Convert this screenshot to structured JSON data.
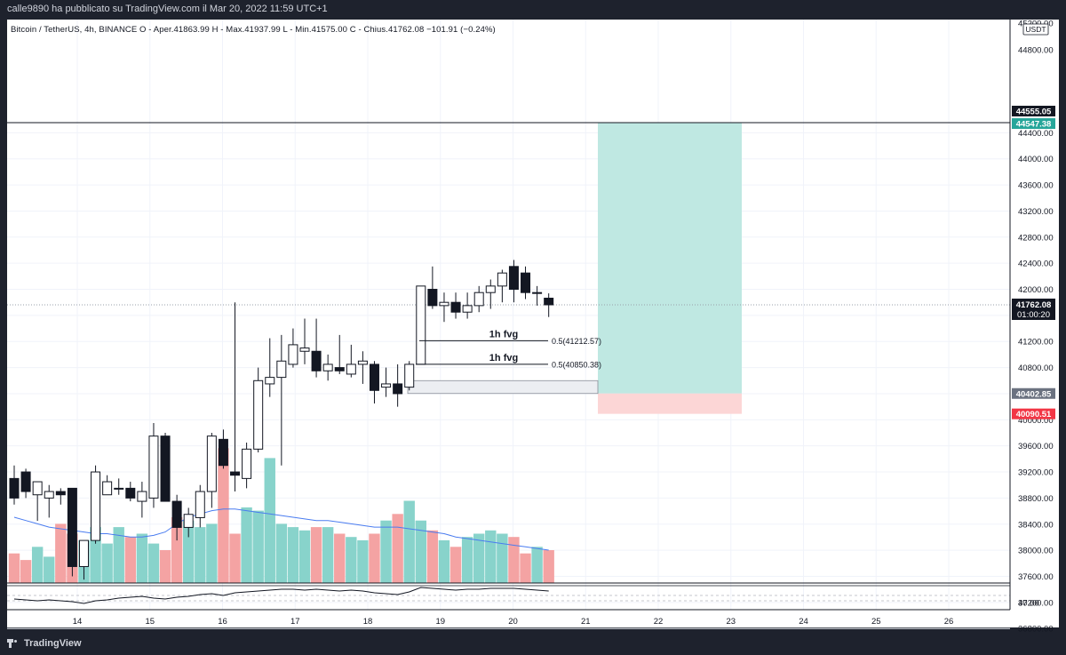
{
  "header": {
    "published": "calle9890 ha pubblicato su TradingView.com il Mar 20, 2022 11:59 UTC+1"
  },
  "legend": {
    "text": "Bitcoin / TetherUS, 4h, BINANCE  O - Aper.41863.99  H - Max.41937.99  L - Min.41575.00  C - Chius.41762.08  −101.91 (−0.24%)"
  },
  "footer": {
    "brand": "TradingView"
  },
  "price_axis": {
    "currency": "USDT",
    "top_partial": "45200.00",
    "partial2": "44800.00",
    "ticks": [
      "44400.00",
      "44000.00",
      "43600.00",
      "43200.00",
      "42800.00",
      "42400.00",
      "42000.00",
      "41600.00",
      "41200.00",
      "40800.00",
      "40400.00",
      "40000.00",
      "39600.00",
      "39200.00",
      "38800.00",
      "38400.00",
      "38000.00",
      "37600.00",
      "37200.00",
      "36800.00"
    ],
    "osc_tick": "40.00",
    "labels": {
      "target": "44555.05",
      "target2": "44547.38",
      "entry": "40402.85",
      "stop": "40090.51",
      "last": "41762.08",
      "countdown": "01:00:20"
    }
  },
  "time_axis": {
    "ticks": [
      "14",
      "15",
      "16",
      "17",
      "18",
      "19",
      "20",
      "21",
      "22",
      "23",
      "24",
      "25",
      "26"
    ]
  },
  "colors": {
    "up_volume": "#88d3cb",
    "down_volume": "#f4a3a3",
    "profit_zone": "#bfe8e2",
    "loss_zone": "#fcd6d6",
    "ma": "#4a7cf0"
  },
  "chart_data": {
    "type": "candlestick",
    "symbol": "Bitcoin / TetherUS",
    "interval": "4h",
    "exchange": "BINANCE",
    "ohlc_last": {
      "open": 41863.99,
      "high": 41937.99,
      "low": 41575.0,
      "close": 41762.08,
      "change": -101.91,
      "change_pct": -0.24
    },
    "day_ticks": [
      "14",
      "15",
      "16",
      "17",
      "18",
      "19",
      "20",
      "21",
      "22",
      "23",
      "24",
      "25",
      "26"
    ],
    "y_range": [
      36600,
      45300
    ],
    "candles": [
      [
        39100,
        39300,
        38700,
        38800
      ],
      [
        39200,
        39250,
        38800,
        38900
      ],
      [
        38850,
        39050,
        38450,
        39050
      ],
      [
        38800,
        39000,
        38500,
        38900
      ],
      [
        38900,
        38950,
        38700,
        38850
      ],
      [
        38950,
        38950,
        37600,
        37750
      ],
      [
        37750,
        38150,
        37550,
        38150
      ],
      [
        38150,
        39300,
        38100,
        39200
      ],
      [
        38850,
        39150,
        38850,
        39050
      ],
      [
        38950,
        39100,
        38850,
        38950
      ],
      [
        38950,
        39050,
        38750,
        38800
      ],
      [
        38750,
        39050,
        38500,
        38900
      ],
      [
        38800,
        39950,
        38650,
        39750
      ],
      [
        39750,
        39800,
        38750,
        38750
      ],
      [
        38750,
        38850,
        38150,
        38350
      ],
      [
        38350,
        38650,
        38200,
        38550
      ],
      [
        38500,
        39000,
        38350,
        38900
      ],
      [
        38900,
        39800,
        38650,
        39750
      ],
      [
        39700,
        39850,
        39250,
        39300
      ],
      [
        39200,
        41800,
        38900,
        39150
      ],
      [
        39100,
        39650,
        38950,
        39550
      ],
      [
        39550,
        40800,
        39500,
        40600
      ],
      [
        40550,
        41250,
        40350,
        40650
      ],
      [
        40650,
        41300,
        39300,
        40900
      ],
      [
        40850,
        41400,
        40800,
        41150
      ],
      [
        41050,
        41550,
        40850,
        41100
      ],
      [
        41050,
        41550,
        40650,
        40750
      ],
      [
        40750,
        41000,
        40600,
        40850
      ],
      [
        40800,
        41300,
        40700,
        40750
      ],
      [
        40700,
        41150,
        40650,
        40850
      ],
      [
        40850,
        41050,
        40550,
        40900
      ],
      [
        40850,
        40900,
        40250,
        40450
      ],
      [
        40500,
        40800,
        40350,
        40550
      ],
      [
        40550,
        40850,
        40200,
        40400
      ],
      [
        40500,
        40900,
        40450,
        40850
      ],
      [
        40850,
        42050,
        40850,
        42050
      ],
      [
        42000,
        42350,
        41700,
        41750
      ],
      [
        41750,
        41950,
        41500,
        41800
      ],
      [
        41800,
        41950,
        41550,
        41650
      ],
      [
        41650,
        41950,
        41550,
        41750
      ],
      [
        41750,
        42050,
        41650,
        41950
      ],
      [
        41950,
        42150,
        41700,
        42050
      ],
      [
        42050,
        42300,
        41800,
        42250
      ],
      [
        42350,
        42450,
        41800,
        42000
      ],
      [
        42250,
        42350,
        41850,
        41950
      ],
      [
        41950,
        42050,
        41750,
        41950
      ],
      [
        41863.99,
        41937.99,
        41575.0,
        41762.08
      ]
    ],
    "volume": [
      18,
      14,
      22,
      16,
      36,
      30,
      26,
      34,
      24,
      34,
      28,
      30,
      24,
      20,
      40,
      38,
      34,
      36,
      82,
      30,
      46,
      44,
      76,
      36,
      34,
      32,
      34,
      34,
      30,
      28,
      26,
      30,
      38,
      42,
      50,
      38,
      32,
      26,
      22,
      28,
      30,
      32,
      30,
      28,
      18,
      22,
      20
    ],
    "volume_ma": [
      40,
      38,
      36,
      34,
      33,
      32,
      31,
      30,
      30,
      29,
      28,
      28,
      29,
      31,
      36,
      40,
      42,
      44,
      45,
      45,
      44,
      43,
      42,
      41,
      40,
      39,
      38,
      38,
      37,
      36,
      35,
      34,
      34,
      34,
      33,
      32,
      31,
      30,
      28,
      27,
      26,
      25,
      24,
      23,
      22,
      21,
      20
    ],
    "annotations": [
      {
        "label": "1h fvg",
        "level_text": "0.5(41212.57)",
        "level": 41212.57
      },
      {
        "label": "1h fvg",
        "level_text": "0.5(40850.38)",
        "level": 40850.38
      }
    ],
    "long_position": {
      "entry": 40402.85,
      "target": 44547.38,
      "stop": 40090.51
    },
    "horizontal_line": 44555.05
  }
}
